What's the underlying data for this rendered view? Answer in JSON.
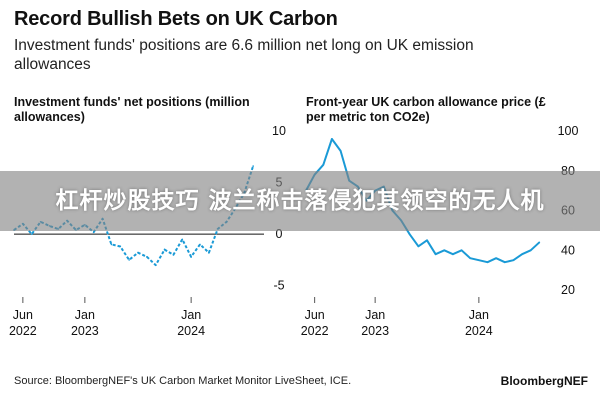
{
  "header": {
    "title": "Record Bullish Bets on UK Carbon",
    "subtitle": "Investment funds' positions are 6.6 million net long on UK emission allowances"
  },
  "footer": {
    "source": "Source: BloombergNEF's UK Carbon Market Monitor LiveSheet, ICE.",
    "brand": "BloombergNEF"
  },
  "overlay": {
    "banner_text": "杠杆炒股技巧 波兰称击落侵犯其领空的无人机"
  },
  "colors": {
    "series": "#1a9ad6",
    "zero_line": "#111111",
    "text": "#111111",
    "banner_bg": "#8a8a8a"
  },
  "chart_data": [
    {
      "type": "line",
      "title": "Investment funds' net positions (million allowances)",
      "x_tick_labels": [
        {
          "top": "Jun",
          "bottom": "2022",
          "date": "2022-06"
        },
        {
          "top": "Jan",
          "bottom": "2023",
          "date": "2023-01"
        },
        {
          "top": "Jan",
          "bottom": "2024",
          "date": "2024-01"
        }
      ],
      "y_ticks": [
        10,
        5,
        0,
        -5
      ],
      "y_axis_side": "right",
      "ylim": [
        -6,
        10
      ],
      "xlim": [
        "2022-05",
        "2024-09"
      ],
      "grid": false,
      "zero_line": true,
      "line_style": "dashed",
      "series": [
        {
          "x": [
            "2022-05",
            "2022-06",
            "2022-07",
            "2022-08",
            "2022-09",
            "2022-10",
            "2022-11",
            "2022-12",
            "2023-01",
            "2023-02",
            "2023-03",
            "2023-04",
            "2023-05",
            "2023-06",
            "2023-07",
            "2023-08",
            "2023-09",
            "2023-10",
            "2023-11",
            "2023-12",
            "2024-01",
            "2024-02",
            "2024-03",
            "2024-04",
            "2024-05",
            "2024-06",
            "2024-07",
            "2024-08"
          ],
          "values": [
            0.4,
            1.0,
            0.0,
            1.2,
            0.8,
            0.5,
            1.3,
            0.4,
            0.9,
            0.2,
            1.5,
            -1.0,
            -1.2,
            -2.5,
            -1.8,
            -2.2,
            -3.0,
            -1.5,
            -2.0,
            -0.5,
            -2.2,
            -1.0,
            -1.8,
            0.5,
            1.2,
            2.5,
            4.0,
            6.6
          ]
        }
      ]
    },
    {
      "type": "line",
      "title": "Front-year UK carbon allowance price (£ per metric ton CO2e)",
      "x_tick_labels": [
        {
          "top": "Jun",
          "bottom": "2022",
          "date": "2022-06"
        },
        {
          "top": "Jan",
          "bottom": "2023",
          "date": "2023-01"
        },
        {
          "top": "Jan",
          "bottom": "2024",
          "date": "2024-01"
        }
      ],
      "y_ticks": [
        100,
        80,
        60,
        40,
        20
      ],
      "y_axis_side": "right",
      "ylim": [
        20,
        100
      ],
      "xlim": [
        "2022-05",
        "2024-09"
      ],
      "grid": false,
      "series": [
        {
          "x": [
            "2022-05",
            "2022-06",
            "2022-07",
            "2022-08",
            "2022-09",
            "2022-10",
            "2022-11",
            "2022-12",
            "2023-01",
            "2023-02",
            "2023-03",
            "2023-04",
            "2023-05",
            "2023-06",
            "2023-07",
            "2023-08",
            "2023-09",
            "2023-10",
            "2023-11",
            "2023-12",
            "2024-01",
            "2024-02",
            "2024-03",
            "2024-04",
            "2024-05",
            "2024-06",
            "2024-07",
            "2024-08"
          ],
          "values": [
            70,
            78,
            83,
            96,
            90,
            75,
            72,
            65,
            70,
            72,
            60,
            55,
            48,
            42,
            45,
            38,
            40,
            38,
            40,
            36,
            35,
            34,
            36,
            34,
            35,
            38,
            40,
            44
          ]
        }
      ]
    }
  ]
}
